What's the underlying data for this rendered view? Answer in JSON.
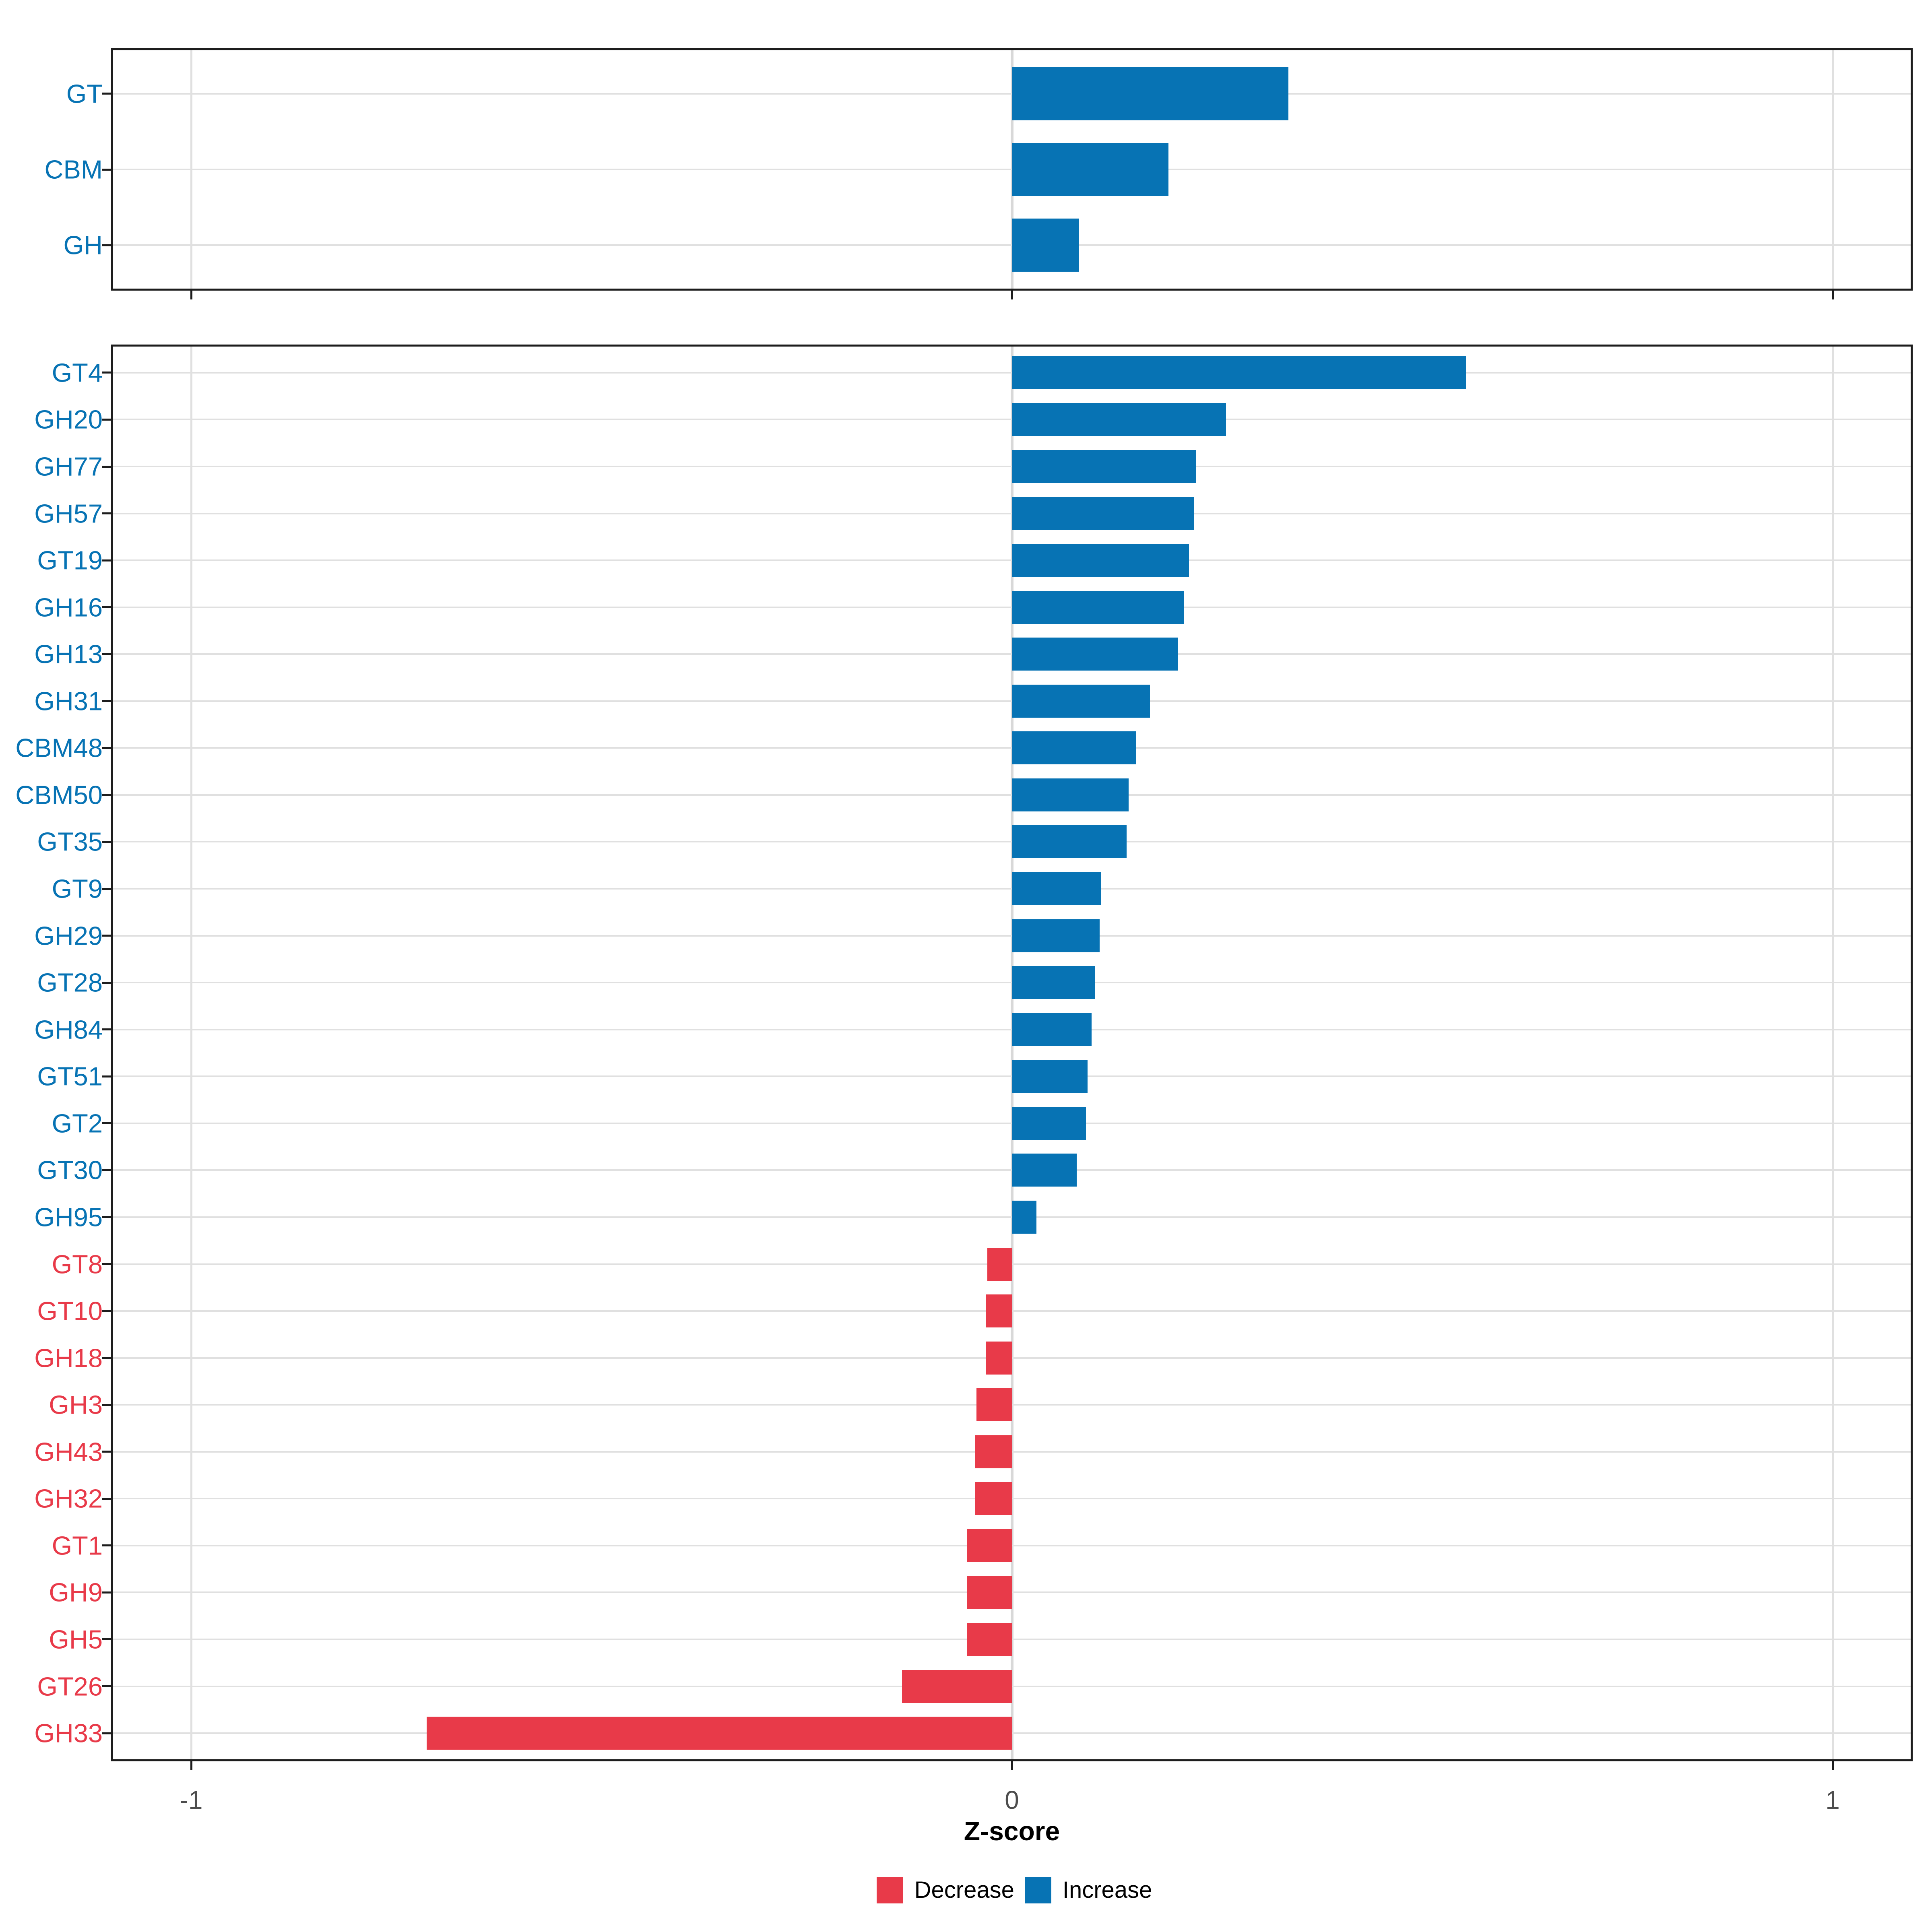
{
  "axis": {
    "xlabel": "Z-score",
    "x_ticks": [
      {
        "label": "-1",
        "value": -1
      },
      {
        "label": "0",
        "value": 0
      },
      {
        "label": "1",
        "value": 1
      }
    ],
    "xlim": [
      -1.1,
      1.1
    ]
  },
  "legend": {
    "position": "bottom",
    "items": [
      {
        "key": "decrease",
        "label": "Decrease",
        "color": "#e83a49"
      },
      {
        "key": "increase",
        "label": "Increase",
        "color": "#0773b4"
      }
    ]
  },
  "colors": {
    "increase": "#0773b4",
    "decrease": "#e83a49",
    "axis_text": "#4d4d4d",
    "grid": "#e0e0e0",
    "zero_grid": "#d8d8d8",
    "panel_border": "#1d1d1d",
    "xlabel_color": "#000000"
  },
  "chart_data": [
    {
      "panel": "cazyme-class",
      "type": "bar",
      "orientation": "horizontal",
      "grid": true,
      "legend_position": "bottom",
      "xlim": [
        -1.1,
        1.1
      ],
      "categories": [
        "GT",
        "CBM",
        "GH"
      ],
      "values": [
        0.337,
        0.191,
        0.082
      ],
      "directions": [
        "Increase",
        "Increase",
        "Increase"
      ]
    },
    {
      "panel": "cazyme-family",
      "type": "bar",
      "orientation": "horizontal",
      "grid": true,
      "legend_position": "bottom",
      "xlim": [
        -1.1,
        1.1
      ],
      "categories": [
        "GT4",
        "GH20",
        "GH77",
        "GH57",
        "GT19",
        "GH16",
        "GH13",
        "GH31",
        "CBM48",
        "CBM50",
        "GT35",
        "GT9",
        "GH29",
        "GT28",
        "GH84",
        "GT51",
        "GT2",
        "GT30",
        "GH95",
        "GT8",
        "GT10",
        "GH18",
        "GH3",
        "GH43",
        "GH32",
        "GT1",
        "GH9",
        "GH5",
        "GT26",
        "GH33"
      ],
      "values": [
        0.553,
        0.261,
        0.224,
        0.222,
        0.216,
        0.21,
        0.202,
        0.168,
        0.151,
        0.142,
        0.14,
        0.109,
        0.107,
        0.101,
        0.097,
        0.092,
        0.09,
        0.079,
        0.03,
        -0.03,
        -0.032,
        -0.032,
        -0.043,
        -0.045,
        -0.045,
        -0.055,
        -0.055,
        -0.055,
        -0.134,
        -0.713
      ],
      "directions": [
        "Increase",
        "Increase",
        "Increase",
        "Increase",
        "Increase",
        "Increase",
        "Increase",
        "Increase",
        "Increase",
        "Increase",
        "Increase",
        "Increase",
        "Increase",
        "Increase",
        "Increase",
        "Increase",
        "Increase",
        "Increase",
        "Increase",
        "Decrease",
        "Decrease",
        "Decrease",
        "Decrease",
        "Decrease",
        "Decrease",
        "Decrease",
        "Decrease",
        "Decrease",
        "Decrease",
        "Decrease"
      ]
    }
  ]
}
